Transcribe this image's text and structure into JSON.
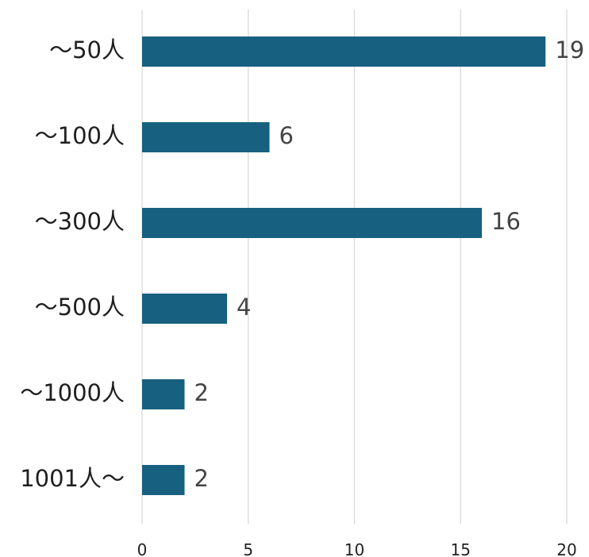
{
  "chart_data": {
    "type": "bar",
    "orientation": "horizontal",
    "categories": [
      "～50人",
      "～100人",
      "～300人",
      "～500人",
      "～1000人",
      "1001人～"
    ],
    "values": [
      19,
      6,
      16,
      4,
      2,
      2
    ],
    "xlim": [
      0,
      20
    ],
    "x_ticks": [
      0,
      5,
      10,
      15,
      20
    ],
    "grid": true,
    "bar_color": "#17607f",
    "gridline_color": "#d9d9d9",
    "category_label_color": "#1f1f1f",
    "value_label_color": "#444444"
  }
}
